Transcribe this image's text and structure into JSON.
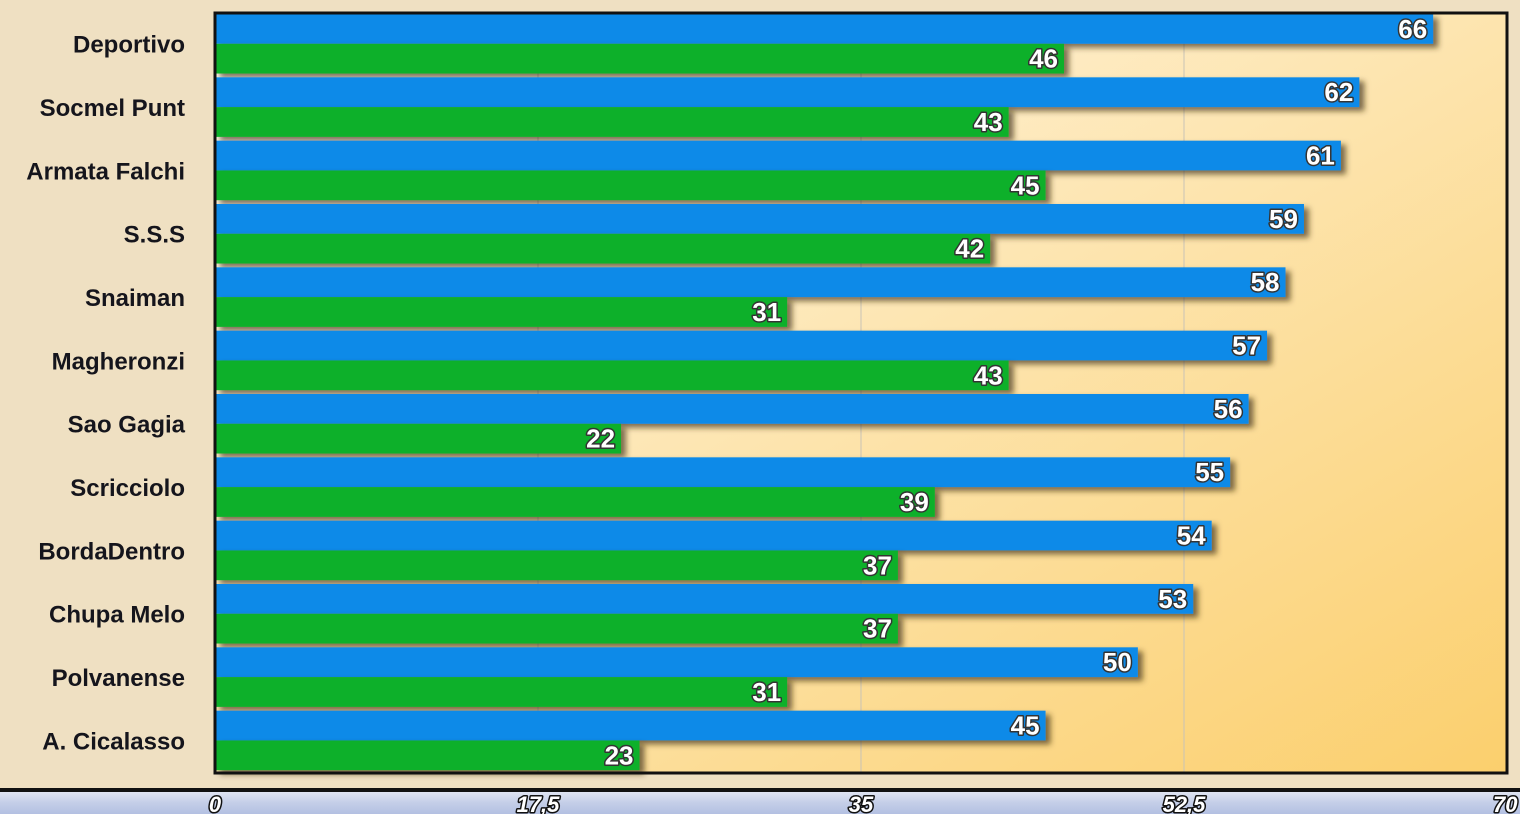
{
  "colors": {
    "series_blue": "#0b8ae8",
    "series_green": "#0cb02a",
    "plot_bg_top": "#fffaf0",
    "plot_bg_bottom": "#fbcf6d",
    "page_bg": "#efe0c2"
  },
  "chart_data": {
    "type": "bar",
    "orientation": "horizontal",
    "categories": [
      "Deportivo",
      "Socmel Punt",
      "Armata Falchi",
      "S.S.S",
      "Snaiman",
      "Magheronzi",
      "Sao Gagia",
      "Scricciolo",
      "BordaDentro",
      "Chupa Melo",
      "Polvanense",
      "A. Cicalasso"
    ],
    "series": [
      {
        "color": "#0b8ae8",
        "values": [
          66,
          62,
          61,
          59,
          58,
          57,
          56,
          55,
          54,
          53,
          50,
          45
        ]
      },
      {
        "color": "#0cb02a",
        "values": [
          46,
          43,
          45,
          42,
          31,
          43,
          22,
          39,
          37,
          37,
          31,
          23
        ]
      }
    ],
    "xlim": [
      0,
      70
    ],
    "xticks": [
      "0",
      "17,5",
      "35",
      "52,5",
      "70"
    ],
    "grid": true,
    "data_labels": true,
    "legend": "none"
  }
}
